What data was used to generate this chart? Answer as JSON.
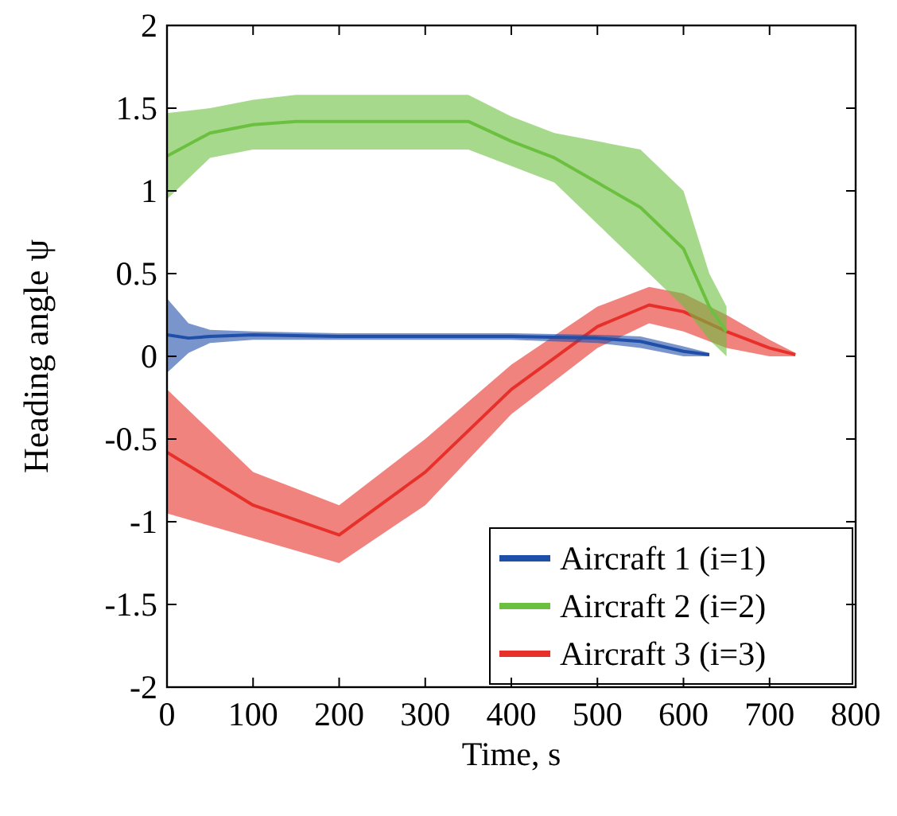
{
  "chart_data": {
    "type": "line",
    "xlabel": "Time, s",
    "ylabel": "Heading angle ψ",
    "xlim": [
      0,
      800
    ],
    "xticks": [
      0,
      100,
      200,
      300,
      400,
      500,
      600,
      700,
      800
    ],
    "ylim": [
      -2,
      2
    ],
    "yticks": [
      -2,
      -1.5,
      -1,
      -0.5,
      0,
      0.5,
      1,
      1.5,
      2
    ],
    "legend": "bottom right",
    "grid": false,
    "series": [
      {
        "name": "Aircraft 1 (i=1)",
        "color": "#1f4fa8",
        "x": [
          0,
          25,
          50,
          100,
          200,
          300,
          400,
          500,
          550,
          600,
          630
        ],
        "values": [
          0.13,
          0.11,
          0.12,
          0.13,
          0.12,
          0.12,
          0.12,
          0.11,
          0.09,
          0.03,
          0.01
        ],
        "lower": [
          -0.1,
          0.02,
          0.08,
          0.1,
          0.1,
          0.1,
          0.1,
          0.08,
          0.05,
          0,
          0
        ],
        "upper": [
          0.35,
          0.2,
          0.16,
          0.15,
          0.14,
          0.14,
          0.14,
          0.13,
          0.12,
          0.06,
          0.02
        ]
      },
      {
        "name": "Aircraft 2 (i=2)",
        "color": "#6cc040",
        "x": [
          0,
          50,
          100,
          150,
          350,
          400,
          450,
          500,
          550,
          600,
          630,
          650
        ],
        "values": [
          1.21,
          1.35,
          1.4,
          1.42,
          1.42,
          1.3,
          1.2,
          1.05,
          0.9,
          0.65,
          0.3,
          0.15
        ],
        "lower": [
          0.95,
          1.2,
          1.25,
          1.25,
          1.25,
          1.15,
          1.05,
          0.8,
          0.55,
          0.3,
          0.1,
          0
        ],
        "upper": [
          1.47,
          1.5,
          1.55,
          1.58,
          1.58,
          1.45,
          1.35,
          1.3,
          1.25,
          1,
          0.5,
          0.3
        ]
      },
      {
        "name": "Aircraft 3 (i=3)",
        "color": "#e8302a",
        "x": [
          0,
          100,
          200,
          300,
          400,
          500,
          560,
          600,
          650,
          700,
          730
        ],
        "values": [
          -0.58,
          -0.9,
          -1.08,
          -0.7,
          -0.2,
          0.18,
          0.31,
          0.27,
          0.15,
          0.05,
          0.01
        ],
        "lower": [
          -0.95,
          -1.1,
          -1.25,
          -0.9,
          -0.35,
          0.05,
          0.2,
          0.15,
          0.05,
          0,
          0
        ],
        "upper": [
          -0.2,
          -0.7,
          -0.9,
          -0.5,
          -0.05,
          0.3,
          0.42,
          0.38,
          0.25,
          0.1,
          0.02
        ]
      }
    ]
  }
}
